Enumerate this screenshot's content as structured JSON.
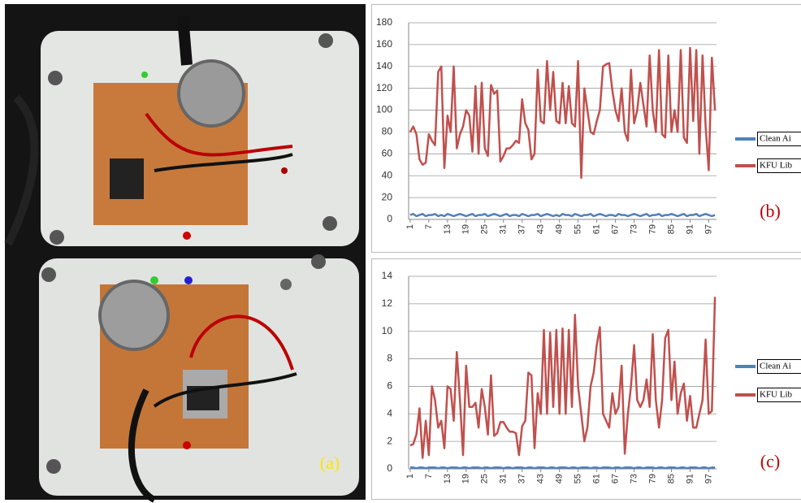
{
  "figure": {
    "photo_label": "(a)"
  },
  "chart_data": [
    {
      "type": "line",
      "label": "(b)",
      "x": [
        1,
        2,
        3,
        4,
        5,
        6,
        7,
        8,
        9,
        10,
        11,
        12,
        13,
        14,
        15,
        16,
        17,
        18,
        19,
        20,
        21,
        22,
        23,
        24,
        25,
        26,
        27,
        28,
        29,
        30,
        31,
        32,
        33,
        34,
        35,
        36,
        37,
        38,
        39,
        40,
        41,
        42,
        43,
        44,
        45,
        46,
        47,
        48,
        49,
        50,
        51,
        52,
        53,
        54,
        55,
        56,
        57,
        58,
        59,
        60,
        61,
        62,
        63,
        64,
        65,
        66,
        67,
        68,
        69,
        70,
        71,
        72,
        73,
        74,
        75,
        76,
        77,
        78,
        79,
        80,
        81,
        82,
        83,
        84,
        85,
        86,
        87,
        88,
        89,
        90,
        91,
        92,
        93,
        94,
        95,
        96,
        97,
        98,
        99
      ],
      "xlim": [
        0.5,
        99.5
      ],
      "xticks": [
        1,
        7,
        13,
        19,
        25,
        31,
        37,
        43,
        49,
        55,
        61,
        67,
        73,
        79,
        85,
        91,
        97
      ],
      "ylim": [
        0,
        180
      ],
      "yticks": [
        0,
        20,
        40,
        60,
        80,
        100,
        120,
        140,
        160,
        180
      ],
      "grid": true,
      "series": [
        {
          "name": "Clean Ai",
          "color": "#4f81bd",
          "values": [
            4,
            5,
            3,
            4,
            5,
            3,
            4,
            4,
            5,
            3,
            4,
            3,
            5,
            4,
            3,
            4,
            5,
            4,
            3,
            4,
            5,
            3,
            4,
            4,
            5,
            3,
            4,
            5,
            4,
            3,
            4,
            5,
            3,
            4,
            4,
            3,
            5,
            4,
            3,
            4,
            4,
            5,
            3,
            4,
            5,
            4,
            3,
            4,
            3,
            5,
            4,
            4,
            3,
            5,
            4,
            3,
            4,
            4,
            5,
            3,
            4,
            5,
            4,
            3,
            4,
            4,
            3,
            5,
            4,
            4,
            3,
            4,
            5,
            4,
            3,
            4,
            5,
            3,
            4,
            4,
            5,
            3,
            4,
            4,
            5,
            4,
            3,
            4,
            5,
            3,
            4,
            4,
            5,
            3,
            4,
            5,
            4,
            3,
            4
          ]
        },
        {
          "name": "KFU Lib",
          "color": "#c0504d",
          "values": [
            80,
            85,
            78,
            55,
            50,
            52,
            78,
            72,
            68,
            135,
            140,
            47,
            95,
            80,
            140,
            65,
            78,
            85,
            100,
            95,
            62,
            122,
            60,
            125,
            65,
            58,
            123,
            115,
            118,
            53,
            58,
            65,
            65,
            68,
            72,
            70,
            110,
            88,
            82,
            55,
            60,
            137,
            90,
            88,
            145,
            100,
            135,
            90,
            88,
            125,
            88,
            122,
            88,
            85,
            145,
            38,
            120,
            100,
            80,
            78,
            90,
            100,
            140,
            142,
            143,
            118,
            100,
            90,
            120,
            80,
            72,
            137,
            88,
            100,
            125,
            105,
            85,
            150,
            100,
            80,
            155,
            78,
            75,
            150,
            80,
            100,
            80,
            155,
            75,
            70,
            157,
            90,
            155,
            60,
            150,
            85,
            45,
            148,
            100
          ]
        }
      ]
    },
    {
      "type": "line",
      "label": "(c)",
      "x": [
        1,
        2,
        3,
        4,
        5,
        6,
        7,
        8,
        9,
        10,
        11,
        12,
        13,
        14,
        15,
        16,
        17,
        18,
        19,
        20,
        21,
        22,
        23,
        24,
        25,
        26,
        27,
        28,
        29,
        30,
        31,
        32,
        33,
        34,
        35,
        36,
        37,
        38,
        39,
        40,
        41,
        42,
        43,
        44,
        45,
        46,
        47,
        48,
        49,
        50,
        51,
        52,
        53,
        54,
        55,
        56,
        57,
        58,
        59,
        60,
        61,
        62,
        63,
        64,
        65,
        66,
        67,
        68,
        69,
        70,
        71,
        72,
        73,
        74,
        75,
        76,
        77,
        78,
        79,
        80,
        81,
        82,
        83,
        84,
        85,
        86,
        87,
        88,
        89,
        90,
        91,
        92,
        93,
        94,
        95,
        96,
        97,
        98,
        99
      ],
      "xlim": [
        0.5,
        99.5
      ],
      "xticks": [
        1,
        7,
        13,
        19,
        25,
        31,
        37,
        43,
        49,
        55,
        61,
        67,
        73,
        79,
        85,
        91,
        97
      ],
      "ylim": [
        0,
        14
      ],
      "yticks": [
        0,
        2,
        4,
        6,
        8,
        10,
        12,
        14
      ],
      "grid": true,
      "series": [
        {
          "name": "Clean Ai",
          "color": "#4f81bd",
          "values": [
            0.1,
            0.1,
            0.05,
            0.1,
            0.1,
            0.05,
            0.1,
            0.1,
            0.1,
            0.05,
            0.1,
            0.1,
            0.05,
            0.1,
            0.1,
            0.1,
            0.05,
            0.1,
            0.1,
            0.05,
            0.1,
            0.1,
            0.1,
            0.05,
            0.1,
            0.1,
            0.05,
            0.1,
            0.1,
            0.1,
            0.05,
            0.1,
            0.1,
            0.05,
            0.1,
            0.1,
            0.1,
            0.05,
            0.1,
            0.1,
            0.05,
            0.1,
            0.1,
            0.1,
            0.05,
            0.1,
            0.1,
            0.05,
            0.1,
            0.1,
            0.1,
            0.05,
            0.1,
            0.1,
            0.05,
            0.1,
            0.1,
            0.1,
            0.05,
            0.1,
            0.1,
            0.05,
            0.1,
            0.1,
            0.1,
            0.05,
            0.1,
            0.1,
            0.05,
            0.1,
            0.1,
            0.1,
            0.05,
            0.1,
            0.1,
            0.05,
            0.1,
            0.1,
            0.1,
            0.05,
            0.1,
            0.1,
            0.05,
            0.1,
            0.1,
            0.1,
            0.05,
            0.1,
            0.1,
            0.05,
            0.1,
            0.1,
            0.1,
            0.05,
            0.1,
            0.1,
            0.05,
            0.1,
            0.1
          ]
        },
        {
          "name": "KFU Lib",
          "color": "#c0504d",
          "values": [
            1.7,
            1.8,
            2.5,
            4.4,
            0.8,
            3.5,
            1.0,
            6.0,
            5.0,
            3.0,
            3.5,
            1.5,
            6.0,
            5.8,
            3.5,
            8.5,
            5.0,
            1.0,
            7.5,
            4.5,
            4.5,
            4.8,
            3.0,
            5.8,
            4.5,
            2.5,
            6.8,
            2.4,
            2.6,
            3.4,
            3.4,
            3.0,
            2.7,
            2.7,
            2.6,
            1.0,
            3.1,
            3.5,
            7.0,
            6.8,
            1.5,
            5.5,
            4.0,
            10.1,
            4.0,
            9.9,
            4.5,
            10.1,
            4.0,
            10.2,
            4.0,
            10.1,
            4.5,
            11.2,
            6.0,
            4.0,
            2.0,
            3.0,
            6.0,
            7.0,
            9.0,
            10.3,
            4.0,
            3.5,
            3.0,
            5.5,
            4.0,
            4.5,
            7.5,
            1.1,
            4.0,
            6.0,
            9.0,
            5.0,
            4.5,
            5.0,
            6.5,
            4.5,
            9.8,
            5.0,
            3.0,
            5.0,
            9.5,
            10.1,
            5.0,
            7.8,
            4.0,
            5.5,
            6.2,
            3.5,
            5.3,
            3.0,
            3.0,
            4.0,
            5.0,
            9.4,
            4.0,
            4.2,
            12.5
          ]
        }
      ]
    }
  ]
}
